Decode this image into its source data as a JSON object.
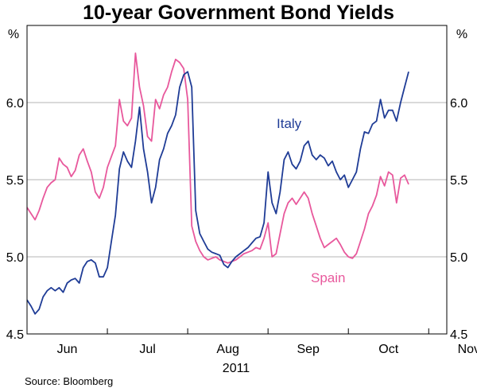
{
  "chart_data": {
    "type": "line",
    "title": "10-year Government Bond Yields",
    "ylabel_left": "%",
    "ylabel_right": "%",
    "ylim": [
      4.5,
      6.5
    ],
    "yticks": [
      "4.5",
      "5.0",
      "5.5",
      "6.0"
    ],
    "xlim": [
      0,
      10.45
    ],
    "x_tick_labels": [
      "Jun",
      "Jul",
      "Aug",
      "Sep",
      "Oct",
      "Nov"
    ],
    "year_label": "2011",
    "source": "Source: Bloomberg",
    "grid": true,
    "series": [
      {
        "name": "Italy",
        "color": "#1f3c96",
        "x": [
          0,
          0.1,
          0.2,
          0.3,
          0.4,
          0.5,
          0.6,
          0.7,
          0.8,
          0.9,
          1.0,
          1.1,
          1.2,
          1.3,
          1.4,
          1.5,
          1.6,
          1.7,
          1.8,
          1.9,
          2.0,
          2.1,
          2.2,
          2.3,
          2.4,
          2.5,
          2.6,
          2.7,
          2.8,
          2.9,
          3.0,
          3.1,
          3.2,
          3.3,
          3.4,
          3.5,
          3.6,
          3.7,
          3.8,
          3.9,
          4.0,
          4.1,
          4.2,
          4.3,
          4.4,
          4.5,
          4.6,
          4.7,
          4.8,
          4.9,
          5.0,
          5.1,
          5.2,
          5.3,
          5.4,
          5.5,
          5.6,
          5.7,
          5.8,
          5.9,
          6.0,
          6.1,
          6.2,
          6.3,
          6.4,
          6.5,
          6.6,
          6.7,
          6.8,
          6.9,
          7.0,
          7.1,
          7.2,
          7.3,
          7.4,
          7.5,
          7.6,
          7.7,
          7.8,
          7.9,
          8.0,
          8.1,
          8.2,
          8.3,
          8.4,
          8.5,
          8.6,
          8.7,
          8.8,
          8.9,
          9.0,
          9.1,
          9.2,
          9.3,
          9.4,
          9.5
        ],
        "values": [
          4.72,
          4.68,
          4.63,
          4.66,
          4.74,
          4.78,
          4.8,
          4.78,
          4.8,
          4.77,
          4.83,
          4.85,
          4.86,
          4.83,
          4.93,
          4.97,
          4.98,
          4.96,
          4.87,
          4.87,
          4.93,
          5.1,
          5.27,
          5.57,
          5.68,
          5.62,
          5.58,
          5.75,
          5.97,
          5.7,
          5.55,
          5.35,
          5.45,
          5.63,
          5.7,
          5.8,
          5.85,
          5.92,
          6.1,
          6.18,
          6.2,
          6.1,
          5.3,
          5.15,
          5.1,
          5.05,
          5.03,
          5.02,
          5.01,
          4.95,
          4.93,
          4.97,
          5.0,
          5.02,
          5.04,
          5.06,
          5.09,
          5.12,
          5.13,
          5.22,
          5.55,
          5.35,
          5.28,
          5.42,
          5.63,
          5.68,
          5.6,
          5.57,
          5.62,
          5.72,
          5.75,
          5.66,
          5.63,
          5.66,
          5.64,
          5.59,
          5.62,
          5.55,
          5.5,
          5.53,
          5.45,
          5.5,
          5.55,
          5.7,
          5.81,
          5.8,
          5.86,
          5.88,
          6.02,
          5.9,
          5.95,
          5.95,
          5.88,
          6.0,
          6.1,
          6.2
        ]
      },
      {
        "name": "Spain",
        "color": "#e8589c",
        "x": [
          0,
          0.1,
          0.2,
          0.3,
          0.4,
          0.5,
          0.6,
          0.7,
          0.8,
          0.9,
          1.0,
          1.1,
          1.2,
          1.3,
          1.4,
          1.5,
          1.6,
          1.7,
          1.8,
          1.9,
          2.0,
          2.1,
          2.2,
          2.3,
          2.4,
          2.5,
          2.6,
          2.7,
          2.8,
          2.9,
          3.0,
          3.1,
          3.2,
          3.3,
          3.4,
          3.5,
          3.6,
          3.7,
          3.8,
          3.9,
          4.0,
          4.1,
          4.2,
          4.3,
          4.4,
          4.5,
          4.6,
          4.7,
          4.8,
          4.9,
          5.0,
          5.1,
          5.2,
          5.3,
          5.4,
          5.5,
          5.6,
          5.7,
          5.8,
          5.9,
          6.0,
          6.1,
          6.2,
          6.3,
          6.4,
          6.5,
          6.6,
          6.7,
          6.8,
          6.9,
          7.0,
          7.1,
          7.2,
          7.3,
          7.4,
          7.5,
          7.6,
          7.7,
          7.8,
          7.9,
          8.0,
          8.1,
          8.2,
          8.3,
          8.4,
          8.5,
          8.6,
          8.7,
          8.8,
          8.9,
          9.0,
          9.1,
          9.2,
          9.3,
          9.4,
          9.5
        ],
        "values": [
          5.32,
          5.28,
          5.24,
          5.3,
          5.38,
          5.45,
          5.48,
          5.5,
          5.64,
          5.6,
          5.58,
          5.52,
          5.56,
          5.66,
          5.7,
          5.62,
          5.55,
          5.42,
          5.38,
          5.45,
          5.58,
          5.65,
          5.72,
          6.02,
          5.88,
          5.85,
          5.9,
          6.32,
          6.1,
          5.98,
          5.78,
          5.75,
          6.02,
          5.96,
          6.05,
          6.1,
          6.2,
          6.28,
          6.26,
          6.22,
          6.02,
          5.2,
          5.1,
          5.04,
          5.0,
          4.98,
          4.99,
          5.0,
          4.98,
          4.97,
          4.96,
          4.97,
          4.98,
          5.0,
          5.02,
          5.03,
          5.04,
          5.06,
          5.05,
          5.12,
          5.22,
          5.0,
          5.02,
          5.15,
          5.28,
          5.35,
          5.38,
          5.34,
          5.38,
          5.42,
          5.38,
          5.28,
          5.2,
          5.12,
          5.06,
          5.08,
          5.1,
          5.12,
          5.08,
          5.03,
          5.0,
          4.99,
          5.02,
          5.1,
          5.18,
          5.28,
          5.33,
          5.4,
          5.52,
          5.46,
          5.55,
          5.53,
          5.35,
          5.51,
          5.53,
          5.47
        ]
      }
    ],
    "annotations": [
      {
        "text": "Italy",
        "series": 0
      },
      {
        "text": "Spain",
        "series": 1
      }
    ]
  }
}
